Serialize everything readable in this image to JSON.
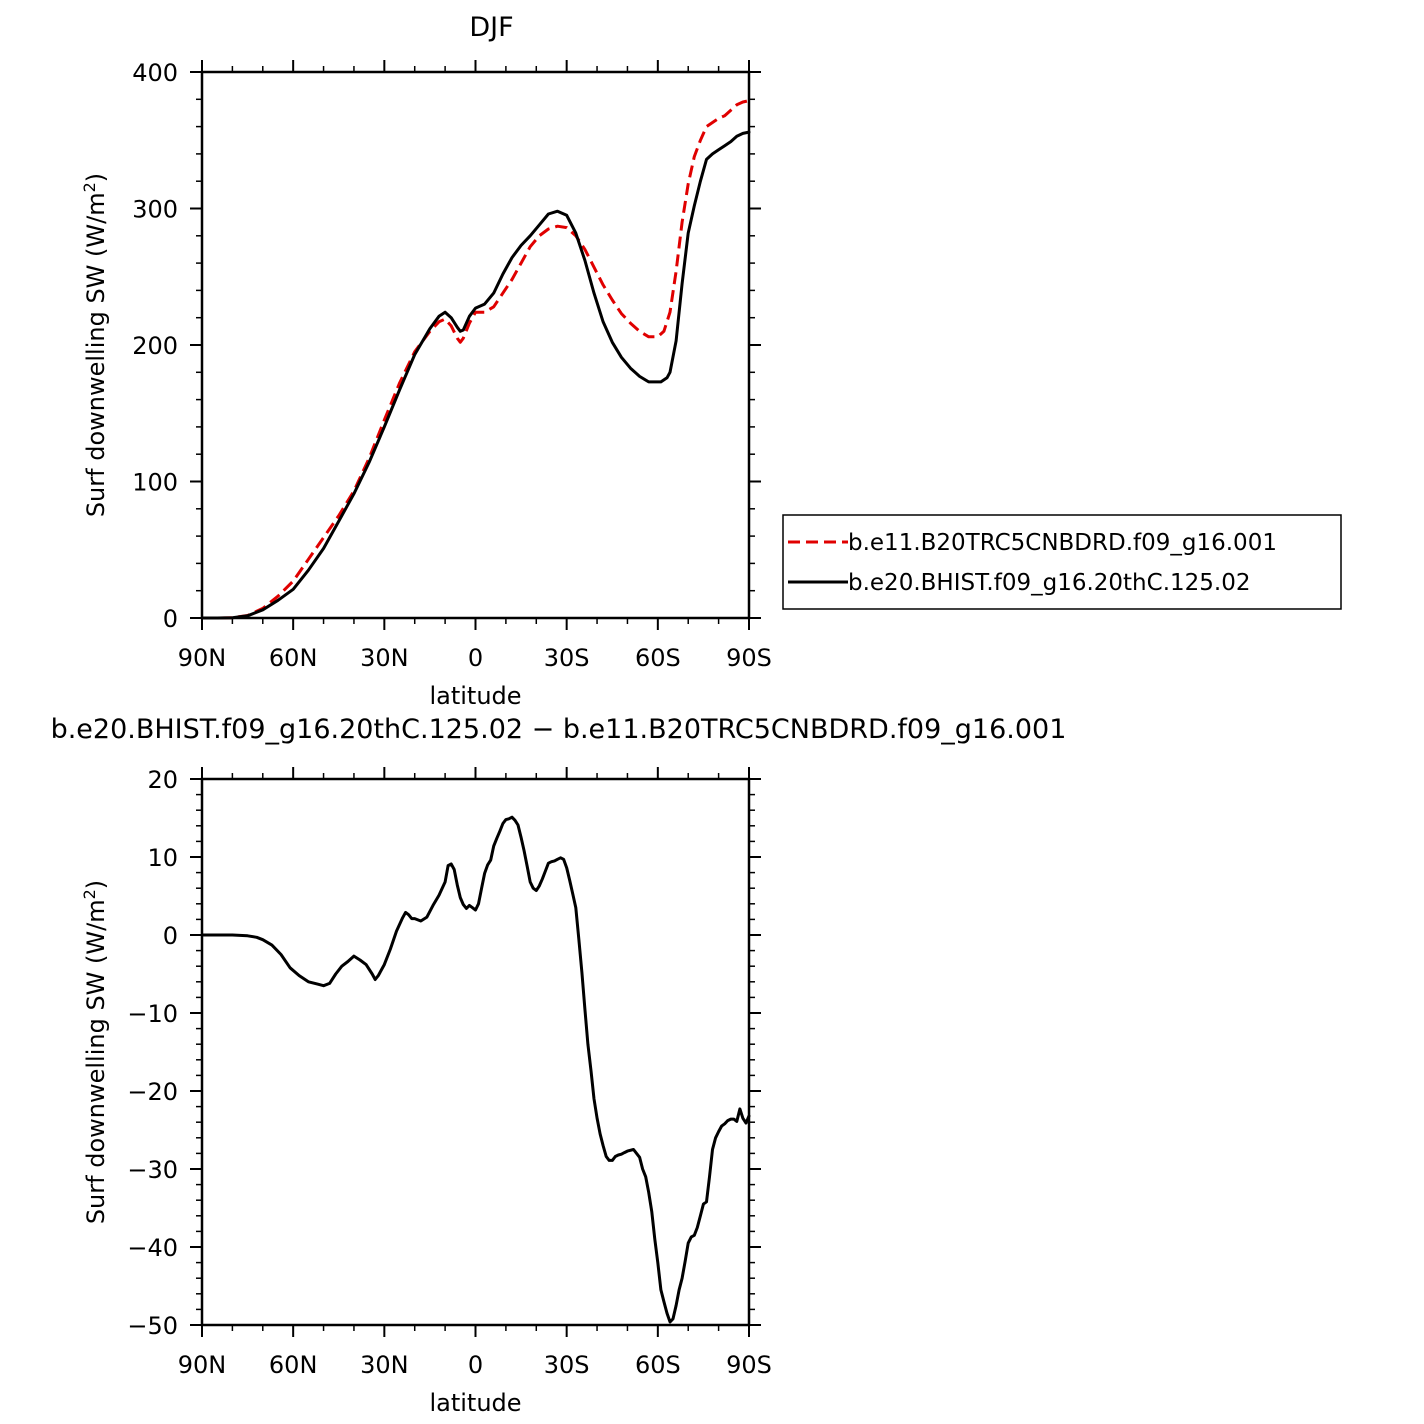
{
  "chart_data": [
    {
      "type": "line",
      "title": "DJF",
      "xlabel": "latitude",
      "ylabel": "Surf downwelling SW (W/m²)",
      "xlim": [
        -90,
        90
      ],
      "ylim": [
        0,
        400
      ],
      "xticks": [
        {
          "value": -90,
          "label": "90N"
        },
        {
          "value": -60,
          "label": "60N"
        },
        {
          "value": -30,
          "label": "30N"
        },
        {
          "value": 0,
          "label": "0"
        },
        {
          "value": 30,
          "label": "30S"
        },
        {
          "value": 60,
          "label": "60S"
        },
        {
          "value": 90,
          "label": "90S"
        }
      ],
      "yticks": [
        {
          "value": 0,
          "label": "0"
        },
        {
          "value": 100,
          "label": "100"
        },
        {
          "value": 200,
          "label": "200"
        },
        {
          "value": 300,
          "label": "300"
        },
        {
          "value": 400,
          "label": "400"
        }
      ],
      "legend_position": "right",
      "series": [
        {
          "name": "b.e11.B20TRC5CNBDRD.f09_g16.001",
          "color": "#e00000",
          "dash": "dashed",
          "x": [
            -90,
            -85,
            -80,
            -75,
            -70,
            -65,
            -60,
            -55,
            -50,
            -45,
            -40,
            -35,
            -30,
            -25,
            -20,
            -15,
            -12,
            -10,
            -8,
            -6,
            -5,
            -4,
            -2,
            0,
            3,
            6,
            9,
            12,
            15,
            18,
            21,
            24,
            27,
            30,
            33,
            36,
            39,
            42,
            45,
            48,
            51,
            54,
            57,
            60,
            62,
            64,
            66,
            68,
            70,
            72,
            74,
            76,
            78,
            80,
            82,
            84,
            86,
            88,
            90
          ],
          "values": [
            0,
            0,
            0.2,
            1.8,
            7,
            16,
            27,
            43,
            59,
            75,
            93,
            117,
            145,
            172,
            195,
            210,
            217,
            219,
            214,
            205,
            202,
            205,
            216,
            224,
            224,
            228,
            238,
            248,
            260,
            272,
            280,
            285,
            287,
            286,
            280,
            270,
            257,
            244,
            233,
            223,
            216,
            210,
            206,
            206,
            210,
            224,
            254,
            290,
            318,
            338,
            350,
            360,
            363,
            366,
            368,
            372,
            376,
            378,
            379
          ]
        },
        {
          "name": "b.e20.BHIST.f09_g16.20thC.125.02",
          "color": "#000000",
          "dash": "solid",
          "x": [
            -90,
            -85,
            -80,
            -75,
            -70,
            -65,
            -60,
            -55,
            -50,
            -45,
            -40,
            -35,
            -30,
            -25,
            -20,
            -15,
            -12,
            -10,
            -8,
            -6,
            -5,
            -4,
            -2,
            0,
            3,
            6,
            9,
            12,
            15,
            18,
            21,
            24,
            27,
            30,
            33,
            36,
            39,
            42,
            45,
            48,
            51,
            54,
            57,
            59,
            61,
            63,
            64,
            66,
            68,
            70,
            72,
            74,
            76,
            78,
            80,
            82,
            84,
            86,
            88,
            90
          ],
          "values": [
            0,
            0,
            0.2,
            1.6,
            6,
            13,
            21,
            35,
            51,
            71,
            91,
            114,
            140,
            167,
            193,
            212,
            221,
            224,
            220,
            213,
            210,
            211,
            221,
            227,
            230,
            238,
            252,
            264,
            273,
            280,
            288,
            296,
            298,
            295,
            282,
            262,
            238,
            217,
            202,
            191,
            183,
            177,
            173,
            173,
            173,
            176,
            180,
            203,
            245,
            282,
            302,
            320,
            336,
            340,
            343,
            346,
            349,
            353,
            355,
            356
          ]
        }
      ]
    },
    {
      "type": "line",
      "title": "b.e20.BHIST.f09_g16.20thC.125.02 − b.e11.B20TRC5CNBDRD.f09_g16.001",
      "xlabel": "latitude",
      "ylabel": "Surf downwelling SW (W/m²)",
      "xlim": [
        -90,
        90
      ],
      "ylim": [
        -50,
        20
      ],
      "xticks": [
        {
          "value": -90,
          "label": "90N"
        },
        {
          "value": -60,
          "label": "60N"
        },
        {
          "value": -30,
          "label": "30N"
        },
        {
          "value": 0,
          "label": "0"
        },
        {
          "value": 30,
          "label": "30S"
        },
        {
          "value": 60,
          "label": "60S"
        },
        {
          "value": 90,
          "label": "90S"
        }
      ],
      "yticks": [
        {
          "value": -50,
          "label": "−50"
        },
        {
          "value": -40,
          "label": "−40"
        },
        {
          "value": -30,
          "label": "−30"
        },
        {
          "value": -20,
          "label": "−20"
        },
        {
          "value": -10,
          "label": "−10"
        },
        {
          "value": 0,
          "label": "0"
        },
        {
          "value": 10,
          "label": "10"
        },
        {
          "value": 20,
          "label": "20"
        }
      ],
      "series": [
        {
          "color": "#000000",
          "dash": "solid",
          "x": [
            -90,
            -85,
            -80,
            -75,
            -72,
            -70,
            -67,
            -64,
            -61,
            -58,
            -55,
            -52,
            -50,
            -48,
            -46,
            -44,
            -42,
            -40,
            -38,
            -36,
            -34,
            -33,
            -32,
            -30,
            -28,
            -26,
            -24,
            -23,
            -22,
            -21,
            -20,
            -18,
            -16,
            -14,
            -12,
            -10,
            -9,
            -8,
            -7,
            -6,
            -5,
            -4,
            -3,
            -2,
            -1,
            0,
            1,
            2,
            3,
            4,
            5,
            6,
            7,
            8,
            9,
            10,
            11,
            12,
            13,
            14,
            15,
            16,
            17,
            18,
            19,
            20,
            21,
            22,
            23,
            24,
            25,
            26,
            27,
            28,
            29,
            30,
            31,
            32,
            33,
            34,
            35,
            36,
            37,
            38,
            39,
            40,
            41,
            42,
            43,
            44,
            45,
            46,
            47,
            48,
            49,
            50,
            52,
            54,
            55,
            56,
            57,
            58,
            59,
            60,
            61,
            62,
            63,
            64,
            65,
            66,
            67,
            68,
            69,
            70,
            71,
            72,
            73,
            74,
            75,
            76,
            77,
            78,
            79,
            80,
            81,
            82,
            83,
            84,
            85,
            86,
            87,
            88,
            89,
            90
          ],
          "values": [
            0,
            0,
            0,
            -0.1,
            -0.3,
            -0.6,
            -1.3,
            -2.5,
            -4.2,
            -5.2,
            -6,
            -6.3,
            -6.5,
            -6.2,
            -5,
            -4,
            -3.4,
            -2.7,
            -3.2,
            -3.8,
            -5,
            -5.7,
            -5.2,
            -3.8,
            -1.8,
            0.5,
            2.2,
            2.9,
            2.6,
            2.1,
            2.1,
            1.8,
            2.3,
            3.8,
            5.1,
            6.8,
            8.9,
            9.1,
            8.4,
            6.4,
            4.8,
            3.9,
            3.4,
            3.8,
            3.5,
            3.2,
            4,
            6,
            7.9,
            9,
            9.6,
            11.4,
            12.4,
            13.3,
            14.3,
            14.8,
            14.9,
            15.1,
            14.7,
            14.1,
            12.5,
            10.8,
            8.8,
            6.8,
            6,
            5.7,
            6.3,
            7.2,
            8.2,
            9.2,
            9.4,
            9.5,
            9.7,
            9.9,
            9.7,
            8.6,
            7,
            5.3,
            3.5,
            -0.5,
            -4.8,
            -9.5,
            -14,
            -17.4,
            -21,
            -23.5,
            -25.5,
            -27,
            -28.4,
            -28.9,
            -28.9,
            -28.4,
            -28.2,
            -28.1,
            -27.9,
            -27.7,
            -27.5,
            -28.5,
            -30,
            -31,
            -33,
            -35.5,
            -39,
            -42,
            -45.5,
            -47,
            -48.5,
            -49.6,
            -49.2,
            -47.5,
            -45.5,
            -44,
            -41.8,
            -39.5,
            -38.7,
            -38.5,
            -37.5,
            -36,
            -34.5,
            -34.2,
            -31,
            -27.5,
            -26,
            -25.2,
            -24.5,
            -24.2,
            -23.8,
            -23.6,
            -23.6,
            -23.9,
            -22.3,
            -23.5,
            -24.1,
            -23.2
          ]
        }
      ]
    }
  ]
}
